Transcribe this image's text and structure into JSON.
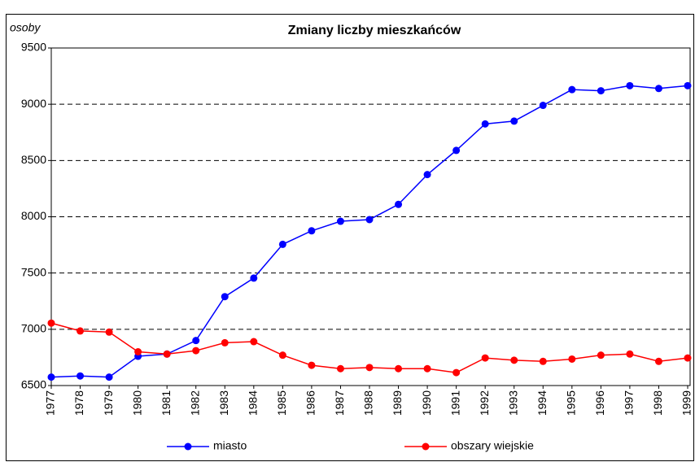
{
  "chart_data": {
    "type": "line",
    "title": "Zmiany liczby mieszkańców",
    "y_label": "osoby",
    "categories": [
      "1977",
      "1978",
      "1979",
      "1980",
      "1981",
      "1982",
      "1983",
      "1984",
      "1985",
      "1986",
      "1987",
      "1988",
      "1989",
      "1990",
      "1991",
      "1992",
      "1993",
      "1994",
      "1995",
      "1996",
      "1997",
      "1998",
      "1999"
    ],
    "series": [
      {
        "name": "miasto",
        "color": "#0000ff",
        "values": [
          6575,
          6585,
          6575,
          6760,
          6780,
          6900,
          7290,
          7455,
          7755,
          7875,
          7960,
          7975,
          8110,
          8375,
          8590,
          8825,
          8850,
          8990,
          9130,
          9120,
          9165,
          9140,
          9165
        ]
      },
      {
        "name": "obszary wiejskie",
        "color": "#ff0000",
        "values": [
          7055,
          6985,
          6975,
          6800,
          6780,
          6810,
          6880,
          6890,
          6770,
          6680,
          6650,
          6660,
          6650,
          6650,
          6615,
          6745,
          6725,
          6715,
          6735,
          6770,
          6780,
          6715,
          6745
        ]
      }
    ],
    "ylim": [
      6500,
      9500
    ],
    "yticks": [
      6500,
      7000,
      7500,
      8000,
      8500,
      9000,
      9500
    ],
    "grid": true,
    "legend": "bottom"
  }
}
